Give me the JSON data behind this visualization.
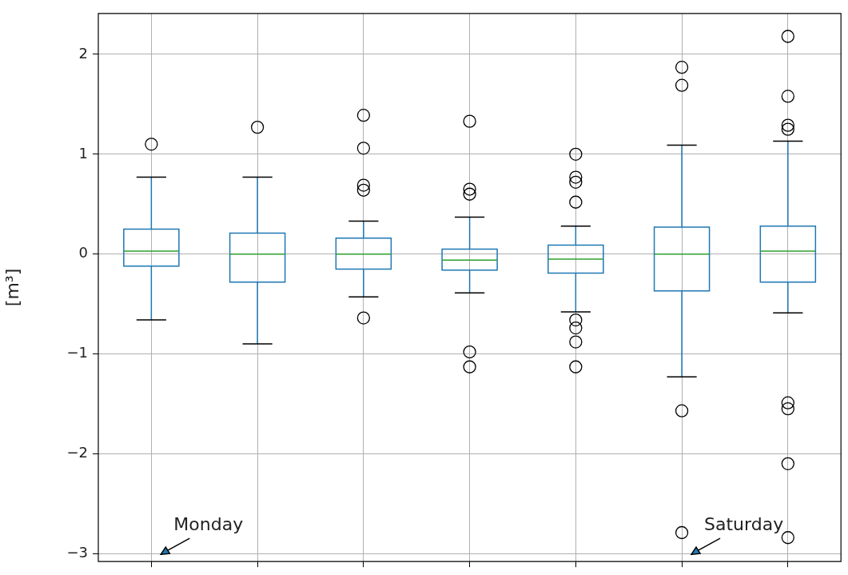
{
  "chart_data": {
    "type": "box",
    "ylabel": "[m³]",
    "categories": [
      null,
      null,
      null,
      null,
      null,
      null,
      null
    ],
    "series": [
      {
        "color": "#1f77b4",
        "boxes": [
          {
            "low": -0.66,
            "q1": -0.12,
            "median": 0.03,
            "q3": 0.25,
            "high": 0.77,
            "outliers": [
              1.1
            ]
          },
          {
            "low": -0.9,
            "q1": -0.28,
            "median": 0.0,
            "q3": 0.21,
            "high": 0.77,
            "outliers": [
              1.27
            ]
          },
          {
            "low": -0.43,
            "q1": -0.15,
            "median": 0.0,
            "q3": 0.16,
            "high": 0.33,
            "outliers": [
              1.39,
              1.06,
              0.69,
              0.64,
              -0.64
            ]
          },
          {
            "low": -0.39,
            "q1": -0.16,
            "median": -0.06,
            "q3": 0.05,
            "high": 0.37,
            "outliers": [
              1.33,
              0.65,
              0.6,
              -0.98,
              -1.13
            ]
          },
          {
            "low": -0.58,
            "q1": -0.19,
            "median": -0.05,
            "q3": 0.09,
            "high": 0.28,
            "outliers": [
              1.0,
              0.77,
              0.72,
              0.52,
              -0.66,
              -0.74,
              -0.88,
              -1.13
            ]
          },
          {
            "low": -1.23,
            "q1": -0.37,
            "median": 0.0,
            "q3": 0.27,
            "high": 1.09,
            "outliers": [
              1.87,
              1.69,
              -1.57,
              -2.79
            ]
          },
          {
            "low": -0.59,
            "q1": -0.28,
            "median": 0.03,
            "q3": 0.28,
            "high": 1.13,
            "outliers": [
              2.18,
              1.58,
              1.29,
              1.25,
              -1.49,
              -1.55,
              -2.1,
              -2.84
            ]
          }
        ]
      }
    ],
    "ylim": [
      -3.08,
      2.41
    ],
    "yticks": [
      {
        "value": -3,
        "label": "−3"
      },
      {
        "value": -2,
        "label": "−2"
      },
      {
        "value": -1,
        "label": "−1"
      },
      0,
      1,
      2
    ],
    "grid": true,
    "tick_labels": "y",
    "annotations": [
      "Monday",
      "Saturday"
    ]
  }
}
